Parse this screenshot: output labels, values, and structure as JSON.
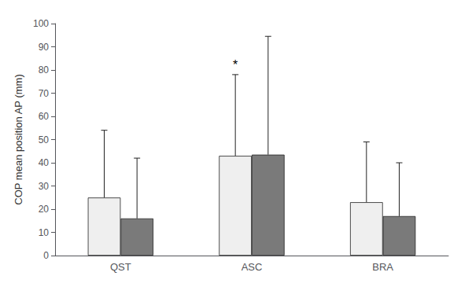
{
  "chart_data": {
    "type": "bar",
    "categories": [
      "QST",
      "ASC",
      "BRA"
    ],
    "series": [
      {
        "color": "#efefef",
        "values": [
          25,
          43,
          23
        ],
        "errors": [
          29,
          35,
          26
        ]
      },
      {
        "color": "#7a7a7a",
        "values": [
          16,
          43.5,
          17
        ],
        "errors": [
          26,
          51,
          23
        ]
      }
    ],
    "ylabel": "COP mean position AP (mm)",
    "ylim": [
      0,
      100
    ],
    "yticks": [
      0,
      10,
      20,
      30,
      40,
      50,
      60,
      70,
      80,
      90,
      100
    ],
    "grid": false,
    "annotations": [
      {
        "text": "*",
        "category": "ASC",
        "series": 0
      }
    ]
  }
}
